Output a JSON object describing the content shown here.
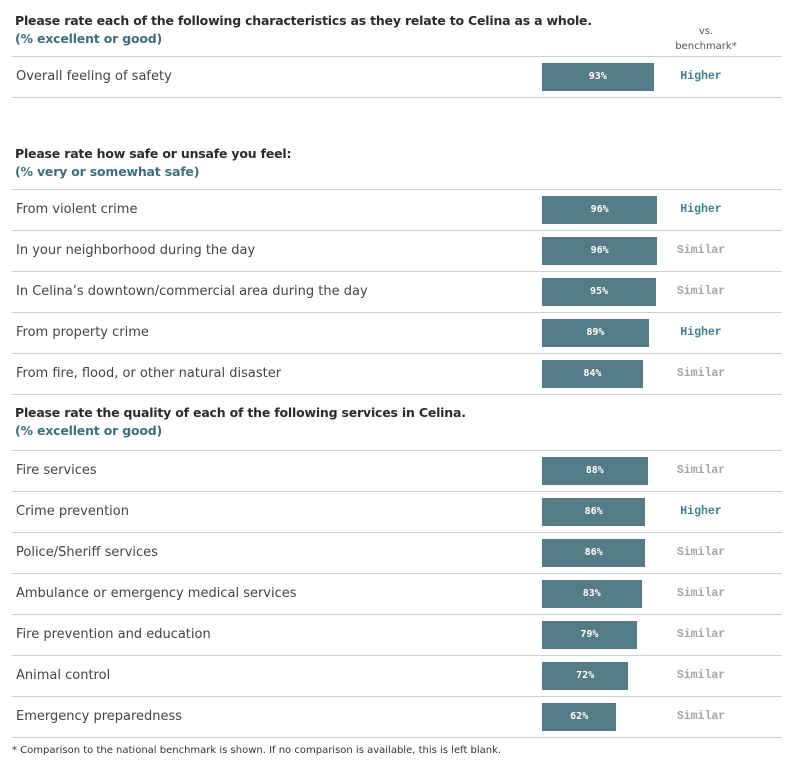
{
  "colors": {
    "bar": "#537c87",
    "higher": "#3f7f8f",
    "similar": "#a5a5a5"
  },
  "benchmark_header": {
    "line1": "vs.",
    "line2": "benchmark*"
  },
  "sections": [
    {
      "question": "Please rate each of the following characteristics as they relate to Celina as a whole.",
      "subtitle": "(% excellent or good)",
      "rows": [
        {
          "label": "Overall feeling of safety",
          "value": 93,
          "value_label": "93%",
          "comparison": "Higher"
        }
      ]
    },
    {
      "question": "Please rate how safe or unsafe you feel:",
      "subtitle": "(% very or somewhat safe)",
      "rows": [
        {
          "label": "From violent crime",
          "value": 96,
          "value_label": "96%",
          "comparison": "Higher"
        },
        {
          "label": "In your neighborhood during the day",
          "value": 96,
          "value_label": "96%",
          "comparison": "Similar"
        },
        {
          "label": "In Celina’s downtown/commercial area during the day",
          "value": 95,
          "value_label": "95%",
          "comparison": "Similar"
        },
        {
          "label": "From property crime",
          "value": 89,
          "value_label": "89%",
          "comparison": "Higher"
        },
        {
          "label": "From fire, flood, or other natural disaster",
          "value": 84,
          "value_label": "84%",
          "comparison": "Similar"
        }
      ]
    },
    {
      "question": "Please rate the quality of each of the following services in Celina.",
      "subtitle": "(% excellent or good)",
      "rows": [
        {
          "label": "Fire services",
          "value": 88,
          "value_label": "88%",
          "comparison": "Similar"
        },
        {
          "label": "Crime prevention",
          "value": 86,
          "value_label": "86%",
          "comparison": "Higher"
        },
        {
          "label": "Police/Sheriff services",
          "value": 86,
          "value_label": "86%",
          "comparison": "Similar"
        },
        {
          "label": "Ambulance or emergency medical services",
          "value": 83,
          "value_label": "83%",
          "comparison": "Similar"
        },
        {
          "label": "Fire prevention and education",
          "value": 79,
          "value_label": "79%",
          "comparison": "Similar"
        },
        {
          "label": "Animal control",
          "value": 72,
          "value_label": "72%",
          "comparison": "Similar"
        },
        {
          "label": "Emergency preparedness",
          "value": 62,
          "value_label": "62%",
          "comparison": "Similar"
        }
      ]
    }
  ],
  "footnote": "* Comparison to the national benchmark is shown. If no comparison is available, this is left blank."
}
